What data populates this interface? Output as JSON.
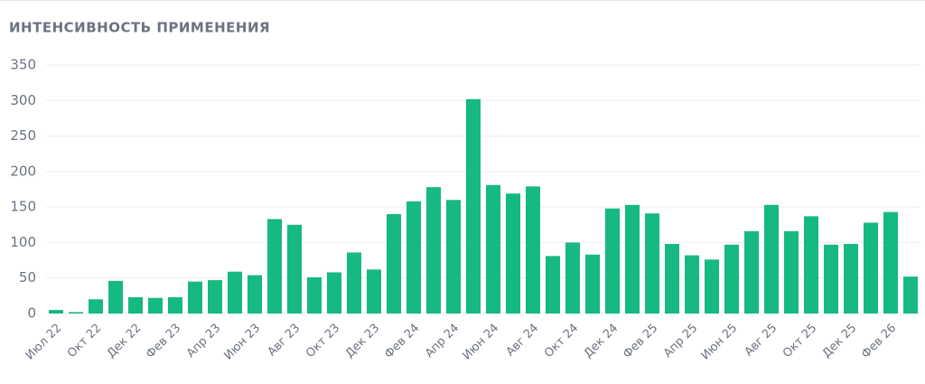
{
  "chart_data": {
    "type": "bar",
    "title": "ИНТЕНСИВНОСТЬ ПРИМЕНЕНИЯ",
    "categories": [
      "Июл 22",
      null,
      "Окт 22",
      null,
      "Дек 22",
      null,
      "Фев 23",
      null,
      "Апр 23",
      null,
      "Июн 23",
      null,
      "Авг 23",
      null,
      "Окт 23",
      null,
      "Дек 23",
      null,
      "Фев 24",
      null,
      "Апр 24",
      null,
      "Июн 24",
      null,
      "Авг 24",
      null,
      "Окт 24",
      null,
      "Дек 24",
      null,
      "Фев 25",
      null,
      "Апр 25",
      null,
      "Июн 25",
      null,
      "Авг 25",
      null,
      "Окт 25",
      null,
      "Дек 25",
      null,
      "Фев 26",
      null
    ],
    "values": [
      5,
      2,
      20,
      46,
      23,
      22,
      23,
      45,
      47,
      59,
      54,
      133,
      125,
      51,
      58,
      86,
      62,
      140,
      158,
      178,
      160,
      302,
      181,
      169,
      179,
      81,
      100,
      83,
      148,
      153,
      141,
      98,
      82,
      76,
      97,
      116,
      153,
      116,
      137,
      97,
      98,
      128,
      143,
      52
    ],
    "color": "#16b97f",
    "ylim": [
      0,
      350
    ],
    "yticks": [
      0,
      50,
      100,
      150,
      200,
      250,
      300,
      350
    ],
    "grid": true
  }
}
